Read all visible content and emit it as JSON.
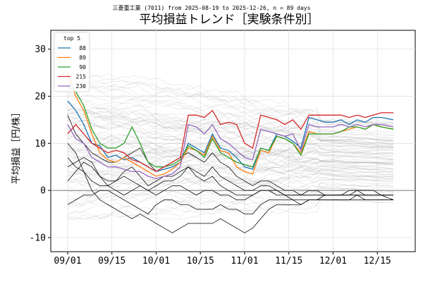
{
  "chart_data": {
    "type": "line",
    "subtitle": "三菱重工業 (7011) from 2025-08-19 to 2025-12-26, n = 89 days",
    "title": "平均損益トレンド［実験条件別］",
    "ylabel": "平均損益［円/株］",
    "xlabel": "",
    "x_ticks": [
      "09/01",
      "09/15",
      "10/01",
      "10/15",
      "11/01",
      "11/15",
      "12/01",
      "12/15"
    ],
    "y_ticks": [
      -10,
      0,
      10,
      20,
      30
    ],
    "ylim": [
      -13,
      34
    ],
    "grid": true,
    "legend": {
      "title": "top 5",
      "placement": "top-left"
    },
    "n_points": 82,
    "anchor_index": [
      0,
      2,
      4,
      6,
      8,
      10,
      12,
      14,
      16,
      18,
      20,
      22,
      24,
      26,
      28,
      30,
      32,
      34,
      36,
      38,
      40,
      42,
      44,
      46,
      48,
      50,
      52,
      54,
      56,
      58,
      60,
      62,
      64,
      66,
      68,
      70,
      72,
      74,
      76,
      78,
      81
    ],
    "series": [
      {
        "name": "88",
        "color": "#1f77b4",
        "values": [
          19,
          17,
          14,
          10,
          9.5,
          7,
          7.5,
          6.5,
          7,
          6,
          5,
          4,
          4.5,
          5,
          6,
          10,
          9,
          8,
          12,
          9,
          8.5,
          7,
          5,
          4.5,
          9,
          8.5,
          12,
          11.5,
          10.5,
          9,
          15.5,
          15,
          14.5,
          14.5,
          15,
          14,
          15,
          14.5,
          15.5,
          15.5,
          15
        ]
      },
      {
        "name": "89",
        "color": "#ff7f0e",
        "values": [
          25,
          20,
          17,
          12,
          8,
          6.5,
          6,
          7,
          6,
          5,
          4,
          3,
          3.5,
          4.5,
          6,
          9,
          8.5,
          7.5,
          11.5,
          8.5,
          8,
          5,
          4,
          3.5,
          8.5,
          8,
          11.5,
          11,
          10,
          8,
          12.5,
          12,
          12,
          12,
          12.5,
          13,
          13.5,
          13,
          14,
          13.5,
          13
        ]
      },
      {
        "name": "90",
        "color": "#2ca02c",
        "values": [
          22,
          21,
          18,
          13,
          10,
          9,
          9,
          10,
          13.5,
          10,
          6,
          5,
          5,
          5.5,
          6.5,
          9.5,
          8.5,
          7,
          11,
          8,
          7,
          6,
          5.5,
          5,
          9,
          8.5,
          11.5,
          11,
          10,
          7.5,
          12,
          12,
          12,
          12,
          12.5,
          13.5,
          13.5,
          13,
          14,
          13.5,
          13
        ]
      },
      {
        "name": "215",
        "color": "#d62728",
        "values": [
          12,
          14,
          12,
          10,
          9,
          8,
          8.5,
          8,
          6.5,
          6,
          5,
          4,
          5,
          6,
          7,
          16,
          16,
          15.5,
          17,
          14,
          14.5,
          14,
          10,
          9,
          16,
          15.5,
          15,
          14,
          15,
          13,
          16,
          16,
          16,
          16,
          16,
          15.5,
          16,
          15.5,
          16,
          16.5,
          16.5
        ]
      },
      {
        "name": "230",
        "color": "#9467bd",
        "values": [
          14,
          11,
          10,
          7,
          6,
          5,
          5,
          4.5,
          4,
          4,
          3,
          2.5,
          3,
          3.5,
          5,
          14,
          13.5,
          12,
          14,
          11,
          10,
          8.5,
          7,
          6.5,
          13,
          12.5,
          12,
          11.5,
          12,
          8.5,
          14,
          13.5,
          13.5,
          13.5,
          14,
          13.5,
          14,
          13.5,
          14,
          14,
          13.5
        ]
      }
    ],
    "background_series": {
      "count": 84,
      "color": "#999999",
      "y_min": -6,
      "y_max": 26,
      "center_start": 9,
      "center_end": 6
    },
    "highlighted_black_series": {
      "count": 6,
      "color": "#000000",
      "values": [
        [
          10,
          8,
          4,
          0,
          -2,
          -3,
          -4,
          -5,
          -6,
          -5,
          -6,
          -7,
          -8,
          -9,
          -8,
          -7,
          -7,
          -7,
          -7,
          -6,
          -7,
          -8,
          -9,
          -8,
          -6,
          -4,
          -3,
          -3,
          -3,
          -3,
          -2,
          -2,
          -2,
          -2,
          -2,
          -2,
          -1,
          -1,
          -1,
          -1,
          -1
        ],
        [
          -3,
          -2,
          -1,
          -1,
          0,
          0,
          -1,
          -2,
          -3,
          -4,
          -5,
          -3,
          -2,
          -2,
          -3,
          -3,
          -4,
          -4,
          -4,
          -3,
          -4,
          -4,
          -5,
          -5,
          -3,
          -2,
          -2,
          -2,
          -2,
          -3,
          -2,
          -2,
          -1,
          -1,
          -1,
          -1,
          0,
          0,
          0,
          -1,
          -1
        ],
        [
          7,
          5,
          4,
          2,
          1,
          1,
          0,
          -1,
          0,
          1,
          0,
          -1,
          0,
          1,
          1,
          0,
          -1,
          0,
          0,
          -1,
          -1,
          -2,
          -2,
          -1,
          0,
          0,
          0,
          -1,
          -1,
          -1,
          0,
          0,
          -1,
          -1,
          -1,
          0,
          0,
          -1,
          -1,
          -1,
          -1
        ],
        [
          2,
          4,
          6,
          5,
          3,
          2,
          2,
          3,
          2,
          1,
          0,
          1,
          2,
          2,
          3,
          5,
          4,
          3,
          5,
          3,
          2,
          1,
          0,
          0,
          1,
          1,
          0,
          -1,
          -1,
          -1,
          -1,
          -1,
          -1,
          -1,
          -1,
          -1,
          -1,
          -1,
          -1,
          -1,
          -2
        ],
        [
          16,
          12,
          10,
          8,
          7,
          6,
          6,
          7,
          8,
          9,
          6,
          4,
          5,
          6,
          7,
          8,
          7,
          6,
          8,
          6,
          5,
          3,
          2,
          1,
          2,
          2,
          1,
          0,
          0,
          -1,
          -1,
          -1,
          -1,
          -1,
          -1,
          -1,
          -1,
          -2,
          -2,
          -2,
          -2
        ],
        [
          5,
          6,
          7,
          6,
          3,
          1,
          2,
          4,
          5,
          3,
          1,
          2,
          3,
          3,
          4,
          5,
          3,
          2,
          3,
          1,
          0,
          -1,
          -1,
          -1,
          0,
          0,
          -1,
          -1,
          -2,
          -2,
          -2,
          -2,
          -2,
          -2,
          -2,
          -2,
          -2,
          -2,
          -2,
          -2,
          -2
        ]
      ]
    },
    "zero_line_color": "#888888"
  }
}
